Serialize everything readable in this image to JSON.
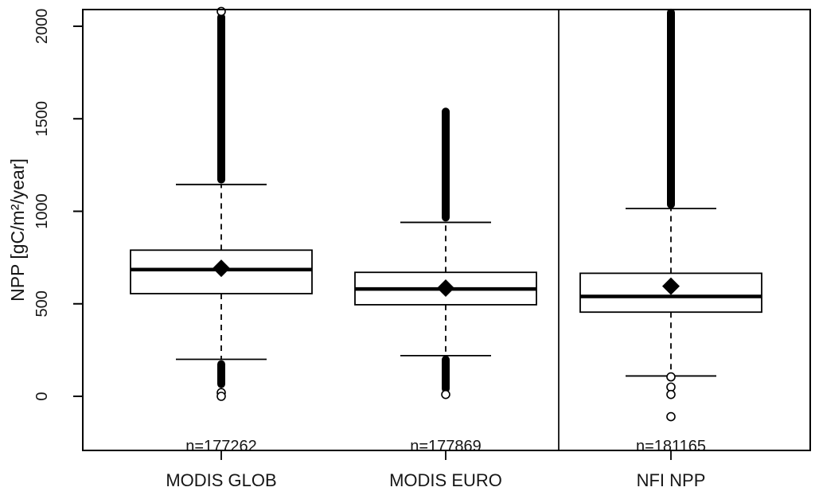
{
  "figure": {
    "background": "#ffffff",
    "foreground": "#000000",
    "text_color": "#161616"
  },
  "chart_data": {
    "type": "boxplot",
    "title": "",
    "xlabel": "",
    "ylabel": "NPP [gC/m²/year]",
    "ylim": [
      -290,
      2090
    ],
    "ytick_values": [
      0,
      500,
      1000,
      1500,
      2000
    ],
    "ytick_labels": [
      "0",
      "500",
      "1000",
      "1500",
      "2000"
    ],
    "grid": false,
    "legend": false,
    "panel_separator_before_category": "NFI NPP",
    "categories": [
      "MODIS GLOB",
      "MODIS EURO",
      "NFI NPP"
    ],
    "series": [
      {
        "name": "MODIS GLOB",
        "n_label": "n=177262",
        "q1": 555,
        "median": 685,
        "q3": 790,
        "mean": 692,
        "whisker_low": 200,
        "whisker_high": 1145,
        "outlier_band_high": [
          1150,
          2070
        ],
        "outlier_circles_high": [
          2080
        ],
        "outlier_band_low": [
          45,
          195
        ],
        "outlier_circles_low": [
          20,
          0
        ]
      },
      {
        "name": "MODIS EURO",
        "n_label": "n=177869",
        "q1": 495,
        "median": 580,
        "q3": 670,
        "mean": 585,
        "whisker_low": 220,
        "whisker_high": 940,
        "outlier_band_high": [
          945,
          1560
        ],
        "outlier_circles_high": [],
        "outlier_band_low": [
          20,
          220
        ],
        "outlier_circles_low": [
          10
        ]
      },
      {
        "name": "NFI NPP",
        "n_label": "n=181165",
        "q1": 455,
        "median": 540,
        "q3": 665,
        "mean": 595,
        "whisker_low": 110,
        "whisker_high": 1015,
        "outlier_band_high": [
          1015,
          2095
        ],
        "outlier_circles_high": [],
        "outlier_band_low": [],
        "outlier_circles_low": [
          105,
          50,
          10,
          -110
        ]
      }
    ]
  }
}
